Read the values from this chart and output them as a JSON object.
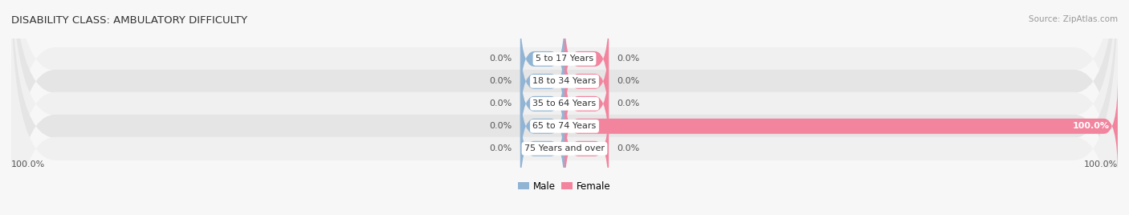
{
  "title": "DISABILITY CLASS: AMBULATORY DIFFICULTY",
  "source_text": "Source: ZipAtlas.com",
  "categories": [
    "5 to 17 Years",
    "18 to 34 Years",
    "35 to 64 Years",
    "65 to 74 Years",
    "75 Years and over"
  ],
  "male_values": [
    0.0,
    0.0,
    0.0,
    0.0,
    0.0
  ],
  "female_values": [
    0.0,
    0.0,
    0.0,
    100.0,
    0.0
  ],
  "male_left_labels": [
    "0.0%",
    "0.0%",
    "0.0%",
    "0.0%",
    "0.0%"
  ],
  "female_right_labels": [
    "0.0%",
    "0.0%",
    "0.0%",
    "100.0%",
    "0.0%"
  ],
  "left_axis_label": "100.0%",
  "right_axis_label": "100.0%",
  "male_color": "#92b4d4",
  "female_color": "#f2849e",
  "bar_bg_light": "#ebebeb",
  "bar_bg_dark": "#dcdcdc",
  "row_colors": [
    "#f2f2f2",
    "#e8e8e8",
    "#f2f2f2",
    "#e8e8e8",
    "#f2f2f2"
  ],
  "max_value": 100.0,
  "stub_size": 8.0,
  "figsize": [
    14.06,
    2.68
  ],
  "dpi": 100
}
